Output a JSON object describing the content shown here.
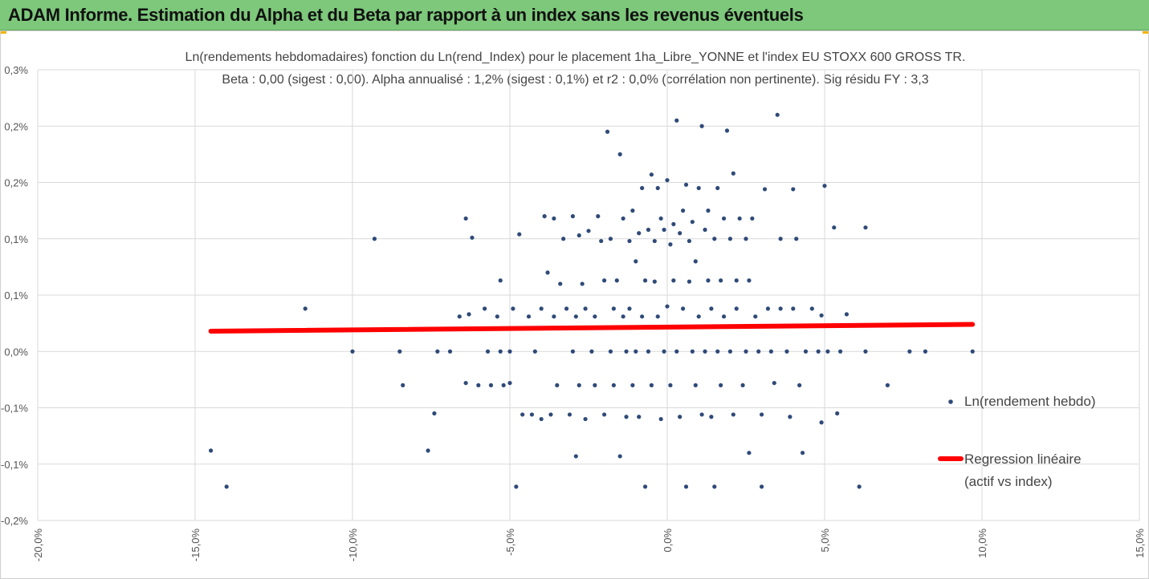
{
  "header": {
    "title": "ADAM Informe. Estimation du Alpha et du Beta par rapport à un index sans les revenus éventuels"
  },
  "colors": {
    "banner": "#7dc87b",
    "points": "#2f4a78",
    "regression": "#ff0000",
    "grid": "#d9d9d9"
  },
  "chart_data": {
    "type": "scatter",
    "title": "Ln(rendements hebdomadaires) fonction du Ln(rend_Index) pour le placement 1ha_Libre_YONNE et l'index EU STOXX 600 GROSS TR.",
    "subtitle": "Beta : 0,00 (sigest : 0,00). Alpha annualisé : 1,2% (sigest : 0,1%) et r2 : 0,0% (corrélation non pertinente). Sig résidu FY : 3,3",
    "xlabel": "",
    "ylabel": "",
    "xlim": [
      -20,
      15
    ],
    "ylim": [
      -0.15,
      0.25
    ],
    "x_ticks": [
      -20,
      -15,
      -10,
      -5,
      0,
      5,
      10,
      15
    ],
    "x_tick_labels": [
      "-20,0%",
      "-15,0%",
      "-10,0%",
      "-5,0%",
      "0,0%",
      "5,0%",
      "10,0%",
      "15,0%"
    ],
    "y_ticks": [
      -0.15,
      -0.1,
      -0.05,
      0.0,
      0.05,
      0.1,
      0.15,
      0.2,
      0.25
    ],
    "y_tick_labels": [
      "-0,2%",
      "-0,1%",
      "-0,1%",
      "0,0%",
      "0,1%",
      "0,1%",
      "0,2%",
      "0,2%",
      "0,3%"
    ],
    "grid": true,
    "legend_position": "right",
    "series": [
      {
        "name": "Ln(rendement hebdo)",
        "kind": "scatter",
        "points": [
          [
            -14.5,
            -0.088
          ],
          [
            -14.0,
            -0.12
          ],
          [
            -11.5,
            0.038
          ],
          [
            -10.0,
            0.0
          ],
          [
            -9.3,
            0.1
          ],
          [
            -8.5,
            0.0
          ],
          [
            -8.4,
            -0.03
          ],
          [
            -7.6,
            -0.088
          ],
          [
            -7.4,
            -0.055
          ],
          [
            -7.3,
            0.0
          ],
          [
            -6.9,
            0.0
          ],
          [
            -6.6,
            0.031
          ],
          [
            -6.4,
            0.118
          ],
          [
            -6.4,
            -0.028
          ],
          [
            -6.3,
            0.033
          ],
          [
            -6.2,
            0.101
          ],
          [
            -6.0,
            -0.03
          ],
          [
            -5.8,
            0.038
          ],
          [
            -5.7,
            0.0
          ],
          [
            -5.6,
            -0.03
          ],
          [
            -5.4,
            0.031
          ],
          [
            -5.3,
            0.063
          ],
          [
            -5.3,
            0.0
          ],
          [
            -5.2,
            -0.03
          ],
          [
            -5.0,
            0.0
          ],
          [
            -5.0,
            -0.028
          ],
          [
            -4.9,
            0.038
          ],
          [
            -4.8,
            -0.12
          ],
          [
            -4.7,
            0.104
          ],
          [
            -4.6,
            -0.056
          ],
          [
            -4.4,
            0.031
          ],
          [
            -4.3,
            -0.056
          ],
          [
            -4.2,
            0.0
          ],
          [
            -4.0,
            -0.06
          ],
          [
            -4.0,
            0.038
          ],
          [
            -3.9,
            0.12
          ],
          [
            -3.8,
            0.07
          ],
          [
            -3.7,
            -0.056
          ],
          [
            -3.6,
            0.118
          ],
          [
            -3.6,
            0.031
          ],
          [
            -3.5,
            -0.03
          ],
          [
            -3.4,
            0.06
          ],
          [
            -3.3,
            0.1
          ],
          [
            -3.2,
            0.038
          ],
          [
            -3.1,
            -0.056
          ],
          [
            -3.0,
            0.12
          ],
          [
            -3.0,
            0.0
          ],
          [
            -2.9,
            -0.093
          ],
          [
            -2.9,
            0.031
          ],
          [
            -2.8,
            0.103
          ],
          [
            -2.8,
            -0.03
          ],
          [
            -2.7,
            0.06
          ],
          [
            -2.6,
            0.038
          ],
          [
            -2.6,
            -0.06
          ],
          [
            -2.5,
            0.107
          ],
          [
            -2.4,
            0.0
          ],
          [
            -2.3,
            -0.03
          ],
          [
            -2.3,
            0.031
          ],
          [
            -2.2,
            0.12
          ],
          [
            -2.1,
            0.098
          ],
          [
            -2.0,
            0.063
          ],
          [
            -2.0,
            -0.056
          ],
          [
            -1.9,
            0.195
          ],
          [
            -1.8,
            0.1
          ],
          [
            -1.8,
            0.0
          ],
          [
            -1.7,
            -0.03
          ],
          [
            -1.7,
            0.038
          ],
          [
            -1.6,
            0.063
          ],
          [
            -1.5,
            0.175
          ],
          [
            -1.5,
            -0.093
          ],
          [
            -1.4,
            0.118
          ],
          [
            -1.4,
            0.031
          ],
          [
            -1.3,
            0.0
          ],
          [
            -1.3,
            -0.058
          ],
          [
            -1.2,
            0.098
          ],
          [
            -1.2,
            0.038
          ],
          [
            -1.1,
            0.125
          ],
          [
            -1.1,
            -0.03
          ],
          [
            -1.0,
            0.08
          ],
          [
            -1.0,
            0.0
          ],
          [
            -0.9,
            0.105
          ],
          [
            -0.9,
            -0.058
          ],
          [
            -0.8,
            0.145
          ],
          [
            -0.8,
            0.031
          ],
          [
            -0.7,
            -0.12
          ],
          [
            -0.7,
            0.063
          ],
          [
            -0.6,
            0.108
          ],
          [
            -0.6,
            0.0
          ],
          [
            -0.5,
            0.157
          ],
          [
            -0.5,
            -0.03
          ],
          [
            -0.4,
            0.062
          ],
          [
            -0.4,
            0.098
          ],
          [
            -0.3,
            0.145
          ],
          [
            -0.3,
            0.031
          ],
          [
            -0.2,
            0.118
          ],
          [
            -0.2,
            -0.06
          ],
          [
            -0.1,
            0.108
          ],
          [
            -0.1,
            0.0
          ],
          [
            0.0,
            0.04
          ],
          [
            0.0,
            0.152
          ],
          [
            0.1,
            -0.03
          ],
          [
            0.1,
            0.095
          ],
          [
            0.2,
            0.113
          ],
          [
            0.2,
            0.063
          ],
          [
            0.3,
            0.205
          ],
          [
            0.3,
            0.0
          ],
          [
            0.4,
            -0.058
          ],
          [
            0.4,
            0.105
          ],
          [
            0.5,
            0.125
          ],
          [
            0.5,
            0.038
          ],
          [
            0.6,
            0.148
          ],
          [
            0.6,
            -0.12
          ],
          [
            0.7,
            0.062
          ],
          [
            0.7,
            0.098
          ],
          [
            0.8,
            0.115
          ],
          [
            0.8,
            0.0
          ],
          [
            0.9,
            0.08
          ],
          [
            0.9,
            -0.03
          ],
          [
            1.0,
            0.145
          ],
          [
            1.0,
            0.031
          ],
          [
            1.1,
            0.2
          ],
          [
            1.1,
            -0.056
          ],
          [
            1.2,
            0.108
          ],
          [
            1.2,
            0.0
          ],
          [
            1.3,
            0.063
          ],
          [
            1.3,
            0.125
          ],
          [
            1.4,
            -0.058
          ],
          [
            1.4,
            0.038
          ],
          [
            1.5,
            0.1
          ],
          [
            1.5,
            -0.12
          ],
          [
            1.6,
            0.145
          ],
          [
            1.6,
            0.0
          ],
          [
            1.7,
            0.063
          ],
          [
            1.7,
            -0.03
          ],
          [
            1.8,
            0.118
          ],
          [
            1.8,
            0.031
          ],
          [
            1.9,
            0.196
          ],
          [
            2.0,
            0.1
          ],
          [
            2.0,
            0.0
          ],
          [
            2.1,
            0.158
          ],
          [
            2.1,
            -0.056
          ],
          [
            2.2,
            0.063
          ],
          [
            2.2,
            0.038
          ],
          [
            2.3,
            0.118
          ],
          [
            2.4,
            -0.03
          ],
          [
            2.5,
            0.1
          ],
          [
            2.5,
            0.0
          ],
          [
            2.6,
            0.063
          ],
          [
            2.6,
            -0.09
          ],
          [
            2.7,
            0.118
          ],
          [
            2.8,
            0.031
          ],
          [
            2.9,
            0.0
          ],
          [
            3.0,
            -0.056
          ],
          [
            3.0,
            -0.12
          ],
          [
            3.1,
            0.144
          ],
          [
            3.2,
            0.038
          ],
          [
            3.3,
            0.0
          ],
          [
            3.4,
            -0.028
          ],
          [
            3.5,
            0.21
          ],
          [
            3.6,
            0.1
          ],
          [
            3.6,
            0.038
          ],
          [
            3.8,
            0.0
          ],
          [
            3.9,
            -0.058
          ],
          [
            4.0,
            0.144
          ],
          [
            4.0,
            0.038
          ],
          [
            4.1,
            0.1
          ],
          [
            4.2,
            -0.03
          ],
          [
            4.3,
            -0.09
          ],
          [
            4.4,
            0.0
          ],
          [
            4.6,
            0.038
          ],
          [
            4.8,
            0.0
          ],
          [
            4.9,
            0.032
          ],
          [
            4.9,
            -0.063
          ],
          [
            5.0,
            0.147
          ],
          [
            5.1,
            0.0
          ],
          [
            5.3,
            0.11
          ],
          [
            5.4,
            -0.055
          ],
          [
            5.5,
            0.0
          ],
          [
            5.7,
            0.033
          ],
          [
            6.1,
            -0.12
          ],
          [
            6.3,
            0.11
          ],
          [
            6.3,
            0.0
          ],
          [
            7.0,
            -0.03
          ],
          [
            7.7,
            0.0
          ],
          [
            8.2,
            0.0
          ],
          [
            9.7,
            0.0
          ]
        ]
      },
      {
        "name": "Regression linéaire (actif vs index)",
        "legend_lines": [
          "Regression linéaire",
          "(actif vs index)"
        ],
        "kind": "line",
        "x": [
          -14.5,
          9.7
        ],
        "y": [
          0.018,
          0.024
        ]
      }
    ]
  }
}
